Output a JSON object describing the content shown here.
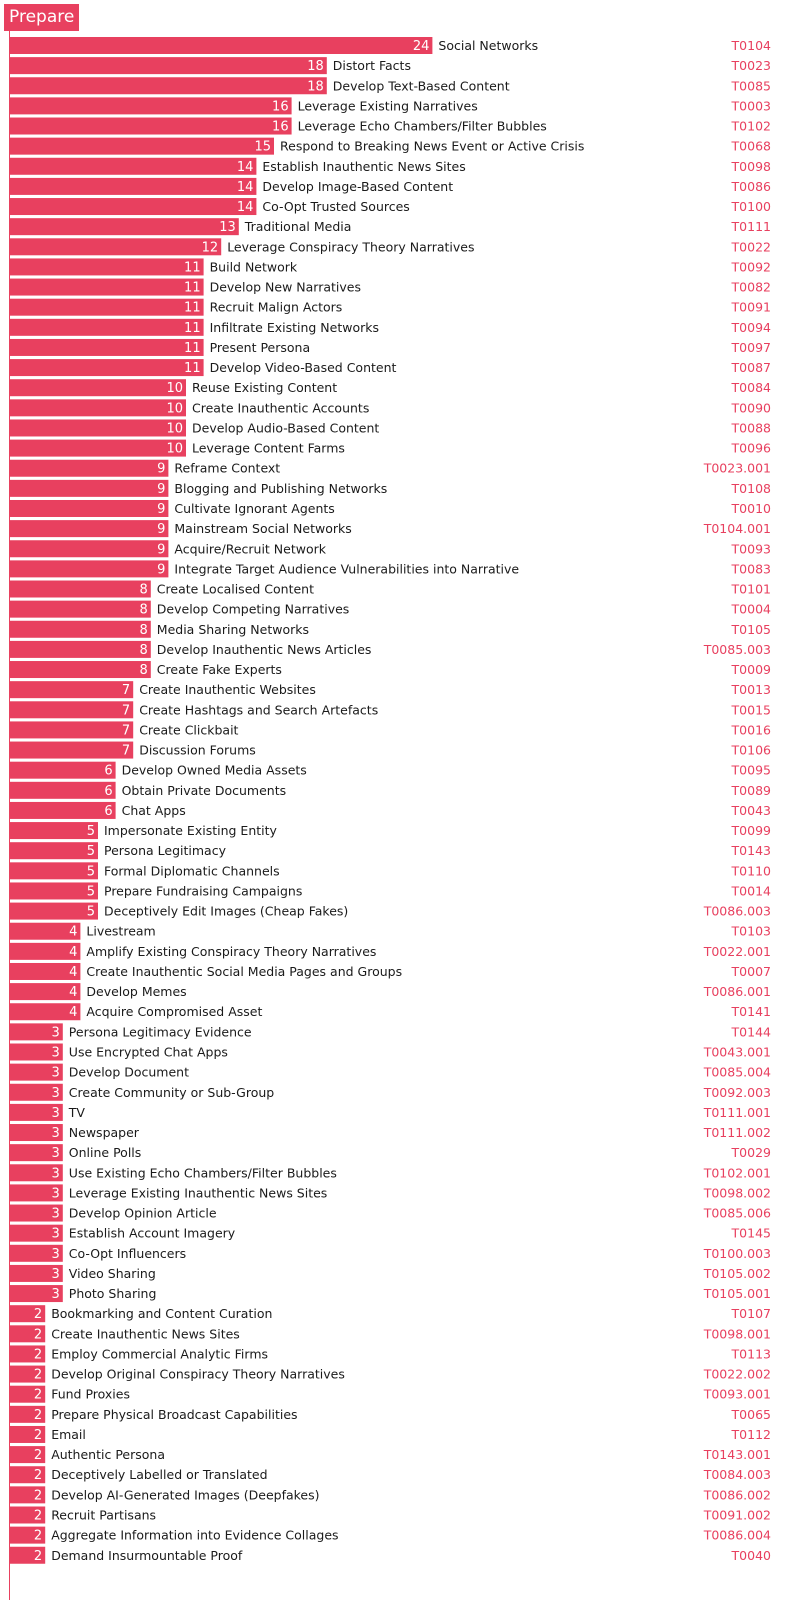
{
  "title": "Prepare",
  "colors": {
    "bar": "#e8405f",
    "label": "#1a1a1a",
    "code": "#e8405f",
    "value": "#ffffff"
  },
  "chart_data": {
    "type": "bar",
    "orientation": "horizontal",
    "title": "Prepare",
    "xlabel": "",
    "ylabel": "",
    "xlim": [
      0,
      24
    ],
    "grid": false,
    "legend": "none",
    "items": [
      {
        "label": "Social Networks",
        "value": 24,
        "code": "T0104"
      },
      {
        "label": "Distort Facts",
        "value": 18,
        "code": "T0023"
      },
      {
        "label": "Develop Text-Based Content",
        "value": 18,
        "code": "T0085"
      },
      {
        "label": "Leverage Existing Narratives",
        "value": 16,
        "code": "T0003"
      },
      {
        "label": "Leverage Echo Chambers/Filter Bubbles",
        "value": 16,
        "code": "T0102"
      },
      {
        "label": "Respond to Breaking News Event or Active Crisis",
        "value": 15,
        "code": "T0068"
      },
      {
        "label": "Establish Inauthentic News Sites",
        "value": 14,
        "code": "T0098"
      },
      {
        "label": "Develop Image-Based Content",
        "value": 14,
        "code": "T0086"
      },
      {
        "label": "Co-Opt Trusted Sources",
        "value": 14,
        "code": "T0100"
      },
      {
        "label": "Traditional Media",
        "value": 13,
        "code": "T0111"
      },
      {
        "label": "Leverage Conspiracy Theory Narratives",
        "value": 12,
        "code": "T0022"
      },
      {
        "label": "Build Network",
        "value": 11,
        "code": "T0092"
      },
      {
        "label": "Develop New Narratives",
        "value": 11,
        "code": "T0082"
      },
      {
        "label": "Recruit Malign Actors",
        "value": 11,
        "code": "T0091"
      },
      {
        "label": "Infiltrate Existing Networks",
        "value": 11,
        "code": "T0094"
      },
      {
        "label": "Present Persona",
        "value": 11,
        "code": "T0097"
      },
      {
        "label": "Develop Video-Based Content",
        "value": 11,
        "code": "T0087"
      },
      {
        "label": "Reuse Existing Content",
        "value": 10,
        "code": "T0084"
      },
      {
        "label": "Create Inauthentic Accounts",
        "value": 10,
        "code": "T0090"
      },
      {
        "label": "Develop Audio-Based Content",
        "value": 10,
        "code": "T0088"
      },
      {
        "label": "Leverage Content Farms",
        "value": 10,
        "code": "T0096"
      },
      {
        "label": "Reframe Context",
        "value": 9,
        "code": "T0023.001"
      },
      {
        "label": "Blogging and Publishing Networks",
        "value": 9,
        "code": "T0108"
      },
      {
        "label": "Cultivate Ignorant Agents",
        "value": 9,
        "code": "T0010"
      },
      {
        "label": "Mainstream Social Networks",
        "value": 9,
        "code": "T0104.001"
      },
      {
        "label": "Acquire/Recruit Network",
        "value": 9,
        "code": "T0093"
      },
      {
        "label": "Integrate Target Audience Vulnerabilities into Narrative",
        "value": 9,
        "code": "T0083"
      },
      {
        "label": "Create Localised Content",
        "value": 8,
        "code": "T0101"
      },
      {
        "label": "Develop Competing Narratives",
        "value": 8,
        "code": "T0004"
      },
      {
        "label": "Media Sharing Networks",
        "value": 8,
        "code": "T0105"
      },
      {
        "label": "Develop Inauthentic News Articles",
        "value": 8,
        "code": "T0085.003"
      },
      {
        "label": "Create Fake Experts",
        "value": 8,
        "code": "T0009"
      },
      {
        "label": "Create Inauthentic Websites",
        "value": 7,
        "code": "T0013"
      },
      {
        "label": "Create Hashtags and Search Artefacts",
        "value": 7,
        "code": "T0015"
      },
      {
        "label": "Create Clickbait",
        "value": 7,
        "code": "T0016"
      },
      {
        "label": "Discussion Forums",
        "value": 7,
        "code": "T0106"
      },
      {
        "label": "Develop Owned Media Assets",
        "value": 6,
        "code": "T0095"
      },
      {
        "label": "Obtain Private Documents",
        "value": 6,
        "code": "T0089"
      },
      {
        "label": "Chat Apps",
        "value": 6,
        "code": "T0043"
      },
      {
        "label": "Impersonate Existing Entity",
        "value": 5,
        "code": "T0099"
      },
      {
        "label": "Persona Legitimacy",
        "value": 5,
        "code": "T0143"
      },
      {
        "label": "Formal Diplomatic Channels",
        "value": 5,
        "code": "T0110"
      },
      {
        "label": "Prepare Fundraising Campaigns",
        "value": 5,
        "code": "T0014"
      },
      {
        "label": "Deceptively Edit Images (Cheap Fakes)",
        "value": 5,
        "code": "T0086.003"
      },
      {
        "label": "Livestream",
        "value": 4,
        "code": "T0103"
      },
      {
        "label": "Amplify Existing Conspiracy Theory Narratives",
        "value": 4,
        "code": "T0022.001"
      },
      {
        "label": "Create Inauthentic Social Media Pages and Groups",
        "value": 4,
        "code": "T0007"
      },
      {
        "label": "Develop Memes",
        "value": 4,
        "code": "T0086.001"
      },
      {
        "label": "Acquire Compromised Asset",
        "value": 4,
        "code": "T0141"
      },
      {
        "label": "Persona Legitimacy Evidence",
        "value": 3,
        "code": "T0144"
      },
      {
        "label": "Use Encrypted Chat Apps",
        "value": 3,
        "code": "T0043.001"
      },
      {
        "label": "Develop Document",
        "value": 3,
        "code": "T0085.004"
      },
      {
        "label": "Create Community or Sub-Group",
        "value": 3,
        "code": "T0092.003"
      },
      {
        "label": "TV",
        "value": 3,
        "code": "T0111.001"
      },
      {
        "label": "Newspaper",
        "value": 3,
        "code": "T0111.002"
      },
      {
        "label": "Online Polls",
        "value": 3,
        "code": "T0029"
      },
      {
        "label": "Use Existing Echo Chambers/Filter Bubbles",
        "value": 3,
        "code": "T0102.001"
      },
      {
        "label": "Leverage Existing Inauthentic News Sites",
        "value": 3,
        "code": "T0098.002"
      },
      {
        "label": "Develop Opinion Article",
        "value": 3,
        "code": "T0085.006"
      },
      {
        "label": "Establish Account Imagery",
        "value": 3,
        "code": "T0145"
      },
      {
        "label": "Co-Opt Influencers",
        "value": 3,
        "code": "T0100.003"
      },
      {
        "label": "Video Sharing",
        "value": 3,
        "code": "T0105.002"
      },
      {
        "label": "Photo Sharing",
        "value": 3,
        "code": "T0105.001"
      },
      {
        "label": "Bookmarking and Content Curation",
        "value": 2,
        "code": "T0107"
      },
      {
        "label": "Create Inauthentic News Sites",
        "value": 2,
        "code": "T0098.001"
      },
      {
        "label": "Employ Commercial Analytic Firms",
        "value": 2,
        "code": "T0113"
      },
      {
        "label": "Develop Original Conspiracy Theory Narratives",
        "value": 2,
        "code": "T0022.002"
      },
      {
        "label": "Fund Proxies",
        "value": 2,
        "code": "T0093.001"
      },
      {
        "label": "Prepare Physical Broadcast Capabilities",
        "value": 2,
        "code": "T0065"
      },
      {
        "label": "Email",
        "value": 2,
        "code": "T0112"
      },
      {
        "label": "Authentic Persona",
        "value": 2,
        "code": "T0143.001"
      },
      {
        "label": "Deceptively Labelled or Translated",
        "value": 2,
        "code": "T0084.003"
      },
      {
        "label": "Develop AI-Generated Images (Deepfakes)",
        "value": 2,
        "code": "T0086.002"
      },
      {
        "label": "Recruit Partisans",
        "value": 2,
        "code": "T0091.002"
      },
      {
        "label": "Aggregate Information into Evidence Collages",
        "value": 2,
        "code": "T0086.004"
      },
      {
        "label": "Demand Insurmountable Proof",
        "value": 2,
        "code": "T0040"
      }
    ]
  }
}
